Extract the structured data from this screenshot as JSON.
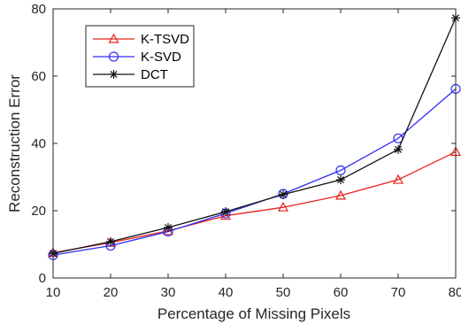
{
  "chart_data": {
    "type": "line",
    "title": "",
    "xlabel": "Percentage of Missing Pixels",
    "ylabel": "Reconstruction Error",
    "x": [
      10,
      20,
      30,
      40,
      50,
      60,
      70,
      80
    ],
    "xlim": [
      10,
      80
    ],
    "ylim": [
      0,
      80
    ],
    "xticks": [
      10,
      20,
      30,
      40,
      50,
      60,
      70,
      80
    ],
    "yticks": [
      0,
      20,
      40,
      60,
      80
    ],
    "grid": false,
    "legend_position": "top-left",
    "series": [
      {
        "name": "K-TSVD",
        "color": "#e8211d",
        "marker": "triangle",
        "values": [
          7.5,
          10.5,
          14,
          18.5,
          21,
          24.5,
          29.2,
          37.5
        ]
      },
      {
        "name": "K-SVD",
        "color": "#2f2ff5",
        "marker": "circle",
        "values": [
          6.8,
          9.6,
          13.8,
          19.2,
          25,
          32,
          41.5,
          56.2
        ]
      },
      {
        "name": "DCT",
        "color": "#111111",
        "marker": "asterisk",
        "values": [
          7.3,
          10.8,
          15,
          19.7,
          24.8,
          29.2,
          38.2,
          77.3
        ]
      }
    ]
  }
}
